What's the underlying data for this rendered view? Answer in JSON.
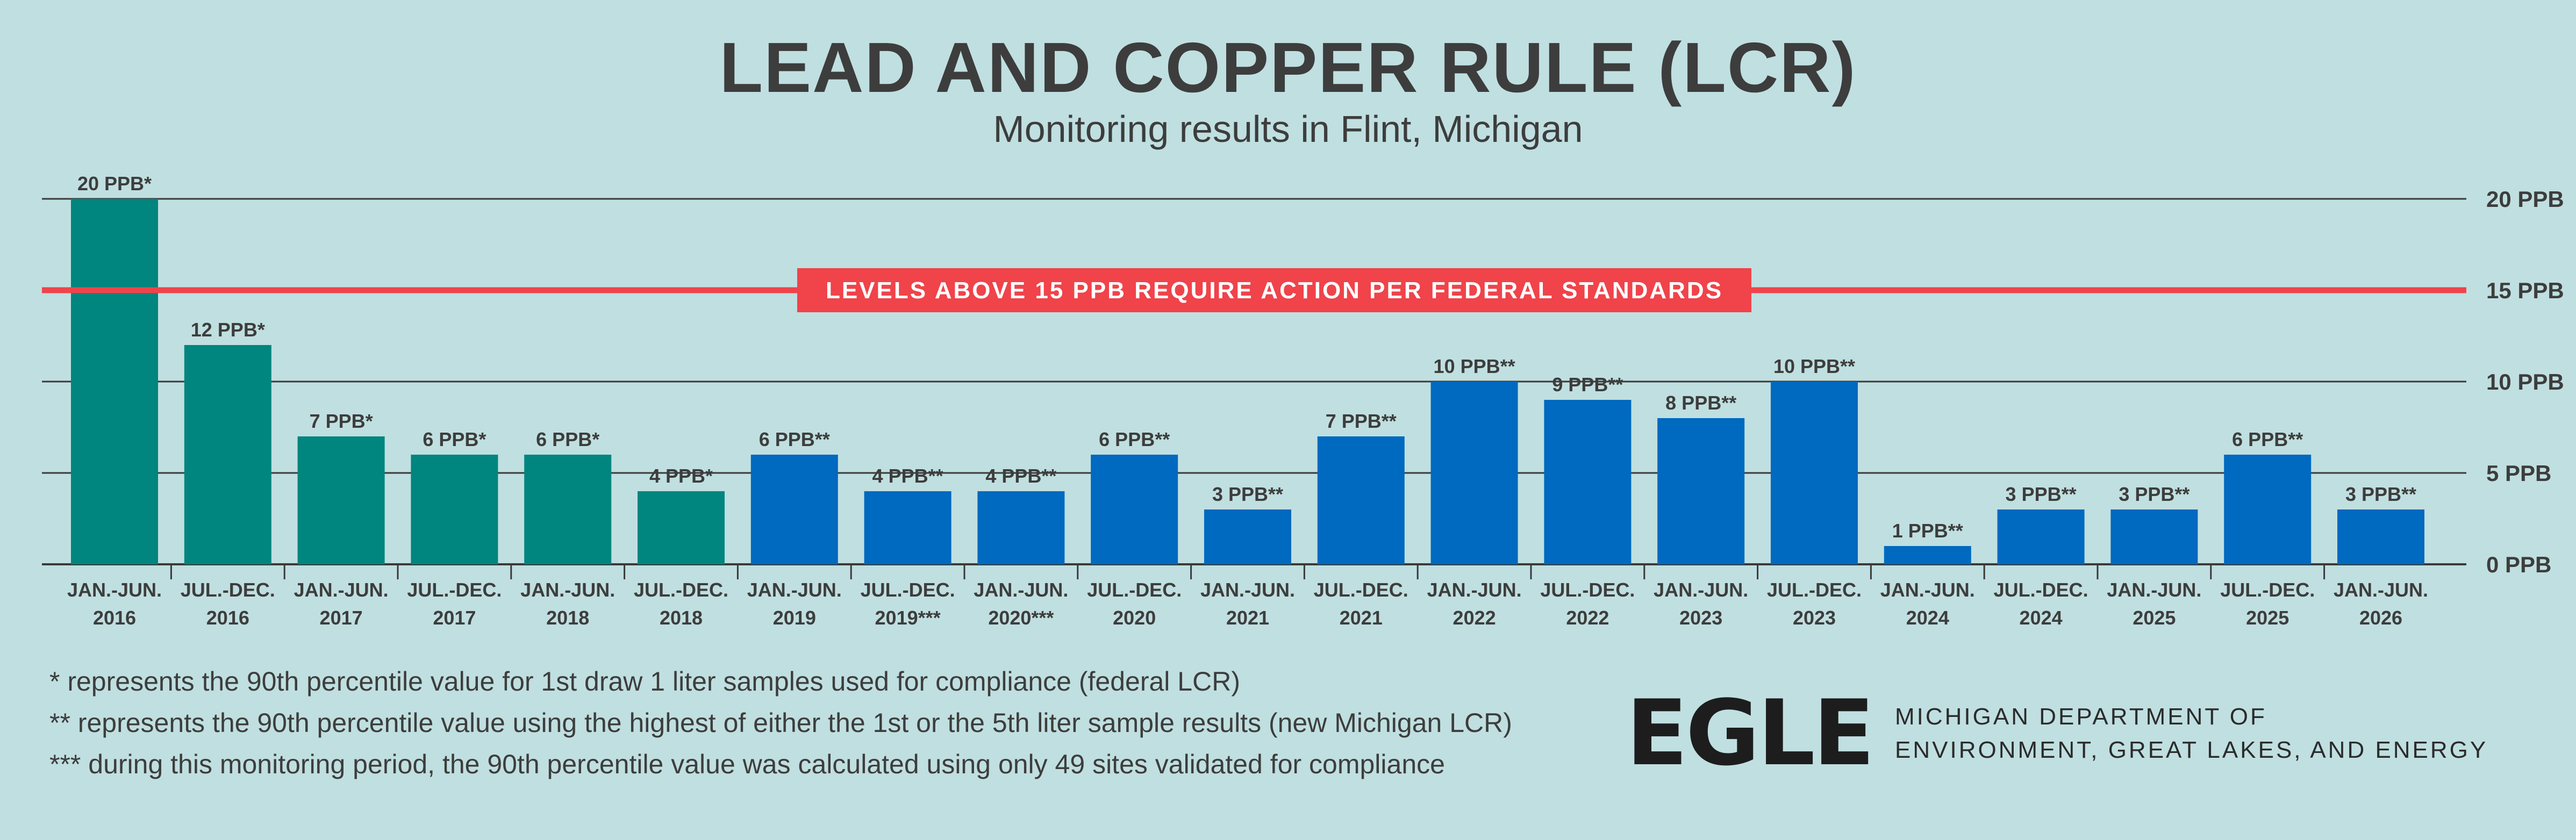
{
  "header": {
    "title": "LEAD AND COPPER RULE (LCR)",
    "subtitle": "Monitoring results in Flint, Michigan"
  },
  "colors": {
    "background": "#c0dfe0",
    "federal_bar": "#00857f",
    "michigan_bar": "#0069c0",
    "action_line": "#f0434a",
    "gridline": "#3a3a3a"
  },
  "chart_data": {
    "type": "bar",
    "title": "LEAD AND COPPER RULE (LCR)",
    "subtitle": "Monitoring results in Flint, Michigan",
    "ylim": [
      0,
      20
    ],
    "y_ticks": [
      0,
      5,
      10,
      15,
      20
    ],
    "y_tick_labels": [
      "0 PPB",
      "5 PPB",
      "10 PPB",
      "15 PPB",
      "20 PPB"
    ],
    "y_axis_side": "right",
    "grid": true,
    "categories": [
      [
        "JAN.-JUN.",
        "2016"
      ],
      [
        "JUL.-DEC.",
        "2016"
      ],
      [
        "JAN.-JUN.",
        "2017"
      ],
      [
        "JUL.-DEC.",
        "2017"
      ],
      [
        "JAN.-JUN.",
        "2018"
      ],
      [
        "JUL.-DEC.",
        "2018"
      ],
      [
        "JAN.-JUN.",
        "2019"
      ],
      [
        "JUL.-DEC.",
        "2019***"
      ],
      [
        "JAN.-JUN.",
        "2020***"
      ],
      [
        "JUL.-DEC.",
        "2020"
      ],
      [
        "JAN.-JUN.",
        "2021"
      ],
      [
        "JUL.-DEC.",
        "2021"
      ],
      [
        "JAN.-JUN.",
        "2022"
      ],
      [
        "JUL.-DEC.",
        "2022"
      ],
      [
        "JAN.-JUN.",
        "2023"
      ],
      [
        "JUL.-DEC.",
        "2023"
      ],
      [
        "JAN.-JUN.",
        "2024"
      ],
      [
        "JUL.-DEC.",
        "2024"
      ],
      [
        "JAN.-JUN.",
        "2025"
      ],
      [
        "JUL.-DEC.",
        "2025"
      ],
      [
        "JAN.-JUN.",
        "2026"
      ]
    ],
    "values": [
      20,
      12,
      7,
      6,
      6,
      4,
      6,
      4,
      4,
      6,
      3,
      7,
      10,
      9,
      8,
      10,
      1,
      3,
      3,
      6,
      3
    ],
    "data_labels": [
      "20 PPB*",
      "12 PPB*",
      "7 PPB*",
      "6 PPB*",
      "6 PPB*",
      "4 PPB*",
      "6 PPB**",
      "4 PPB**",
      "4 PPB**",
      "6 PPB**",
      "3 PPB**",
      "7 PPB**",
      "10 PPB**",
      "9 PPB**",
      "8 PPB**",
      "10 PPB**",
      "1 PPB**",
      "3 PPB**",
      "3 PPB**",
      "6 PPB**",
      "3 PPB**"
    ],
    "bar_methods": [
      "federal",
      "federal",
      "federal",
      "federal",
      "federal",
      "federal",
      "michigan",
      "michigan",
      "michigan",
      "michigan",
      "michigan",
      "michigan",
      "michigan",
      "michigan",
      "michigan",
      "michigan",
      "michigan",
      "michigan",
      "michigan",
      "michigan",
      "michigan"
    ],
    "threshold": {
      "value": 15,
      "label": "LEVELS ABOVE 15 PPB REQUIRE ACTION PER FEDERAL STANDARDS"
    }
  },
  "footnotes": [
    "* represents the 90th percentile value for 1st draw 1 liter samples used for compliance (federal LCR)",
    "** represents the 90th percentile value using the highest of either the 1st or the 5th liter sample results (new Michigan LCR)",
    "*** during this monitoring period, the 90th percentile value was calculated using only 49 sites validated for compliance"
  ],
  "logo": {
    "wordmark": "EGLE",
    "dept_line1": "MICHIGAN DEPARTMENT OF",
    "dept_line2": "ENVIRONMENT, GREAT LAKES, AND ENERGY"
  }
}
